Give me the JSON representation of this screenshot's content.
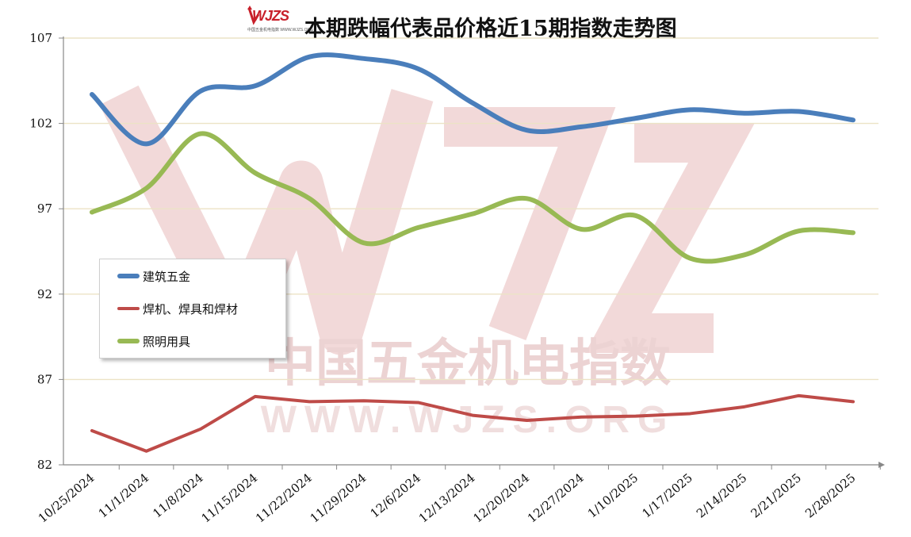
{
  "header": {
    "title": "本期跌幅代表品价格近15期指数走势图",
    "logo_text": "WJZS",
    "logo_subtext": "中国五金机电指数 WWW.WJZS.ORG"
  },
  "watermark": {
    "main": "中国五金机电指数",
    "url": "WWW.WJZS.ORG",
    "color": "#e8c2c2"
  },
  "chart_data": {
    "type": "line",
    "title": "本期跌幅代表品价格近15期指数走势图",
    "xlabel": "",
    "ylabel": "",
    "categories": [
      "10/25/2024",
      "11/1/2024",
      "11/8/2024",
      "11/15/2024",
      "11/22/2024",
      "11/29/2024",
      "12/6/2024",
      "12/13/2024",
      "12/20/2024",
      "12/27/2024",
      "1/10/2025",
      "1/17/2025",
      "2/14/2025",
      "2/21/2025",
      "2/28/2025"
    ],
    "ylim": [
      82,
      107
    ],
    "yticks": [
      "82",
      "87",
      "92",
      "97",
      "102",
      "107"
    ],
    "grid": true,
    "legend_position": "left-middle",
    "series": [
      {
        "name": "建筑五金",
        "color": "#4a7ebb",
        "values": [
          103.7,
          100.8,
          103.9,
          104.2,
          105.9,
          105.8,
          105.2,
          103.2,
          101.6,
          101.8,
          102.3,
          102.8,
          102.6,
          102.7,
          102.2
        ]
      },
      {
        "name": "焊机、焊具和焊材",
        "color": "#be4b48",
        "values": [
          84.0,
          82.8,
          84.1,
          86.0,
          85.7,
          85.75,
          85.65,
          84.9,
          84.6,
          84.8,
          84.85,
          85.0,
          85.4,
          86.05,
          85.7
        ]
      },
      {
        "name": "照明用具",
        "color": "#98b954",
        "values": [
          96.8,
          98.2,
          101.4,
          99.1,
          97.6,
          95.0,
          95.9,
          96.7,
          97.6,
          95.8,
          96.6,
          94.1,
          94.3,
          95.7,
          95.6
        ]
      }
    ]
  }
}
